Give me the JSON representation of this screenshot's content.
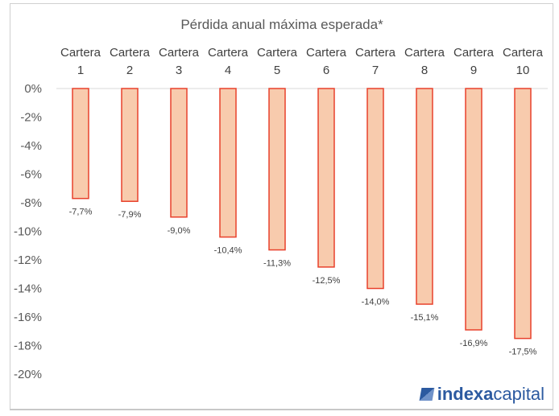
{
  "chart_data": {
    "type": "bar",
    "title": "Pérdida anual máxima esperada*",
    "categories": [
      "Cartera 1",
      "Cartera 2",
      "Cartera 3",
      "Cartera 4",
      "Cartera 5",
      "Cartera 6",
      "Cartera 7",
      "Cartera 8",
      "Cartera 9",
      "Cartera 10"
    ],
    "category_lines": [
      [
        "Cartera",
        "1"
      ],
      [
        "Cartera",
        "2"
      ],
      [
        "Cartera",
        "3"
      ],
      [
        "Cartera",
        "4"
      ],
      [
        "Cartera",
        "5"
      ],
      [
        "Cartera",
        "6"
      ],
      [
        "Cartera",
        "7"
      ],
      [
        "Cartera",
        "8"
      ],
      [
        "Cartera",
        "9"
      ],
      [
        "Cartera",
        "10"
      ]
    ],
    "values": [
      -7.7,
      -7.9,
      -9.0,
      -10.4,
      -11.3,
      -12.5,
      -14.0,
      -15.1,
      -16.9,
      -17.5
    ],
    "data_labels": [
      "-7,7%",
      "-7,9%",
      "-9,0%",
      "-10,4%",
      "-11,3%",
      "-12,5%",
      "-14,0%",
      "-15,1%",
      "-16,9%",
      "-17,5%"
    ],
    "yticks": [
      "0%",
      "-2%",
      "-4%",
      "-6%",
      "-8%",
      "-10%",
      "-12%",
      "-14%",
      "-16%",
      "-18%",
      "-20%"
    ],
    "ylim": [
      -20,
      0
    ],
    "grid": false,
    "xaxis_position": "top",
    "colors": {
      "bar_fill": "#f8cbad",
      "bar_stroke": "#e8412c"
    }
  },
  "logo": {
    "bold": "indexa",
    "light": "capital"
  }
}
